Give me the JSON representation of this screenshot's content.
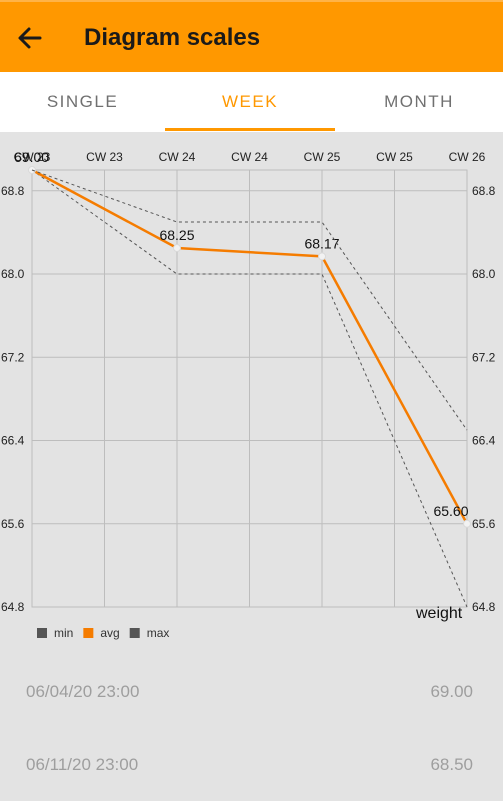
{
  "app": {
    "title": "Diagram scales"
  },
  "tabs": [
    {
      "label": "SINGLE",
      "active": false
    },
    {
      "label": "WEEK",
      "active": true
    },
    {
      "label": "MONTH",
      "active": false
    }
  ],
  "colors": {
    "accent": "#ff9800",
    "avg_line": "#f57c00",
    "minmax_line": "#555555",
    "grid": "#bdbdbd"
  },
  "chart_data": {
    "type": "line",
    "x_labels": [
      "CW 23",
      "CW 23",
      "CW 24",
      "CW 24",
      "CW 25",
      "CW 25",
      "CW 26"
    ],
    "y_ticks": [
      "64.8",
      "65.6",
      "66.4",
      "67.2",
      "68.0",
      "68.8"
    ],
    "ylim": [
      64.8,
      69.0
    ],
    "grid": true,
    "corner_label": "weight",
    "legend_position": "bottom-left",
    "series": [
      {
        "name": "min",
        "style": "dotted",
        "points": [
          [
            0,
            69.0
          ],
          [
            2,
            68.0
          ],
          [
            4,
            68.0
          ],
          [
            6,
            64.8
          ]
        ]
      },
      {
        "name": "avg",
        "style": "solid",
        "points": [
          [
            0,
            69.0
          ],
          [
            2,
            68.25
          ],
          [
            4,
            68.17
          ],
          [
            6,
            65.6
          ]
        ],
        "labels": [
          "69.00",
          "68.25",
          "68.17",
          "65.60"
        ]
      },
      {
        "name": "max",
        "style": "dotted",
        "points": [
          [
            0,
            69.0
          ],
          [
            2,
            68.5
          ],
          [
            4,
            68.5
          ],
          [
            6,
            66.5
          ]
        ]
      }
    ]
  },
  "entries": [
    {
      "date": "06/04/20 23:00",
      "value": "69.00"
    },
    {
      "date": "06/11/20 23:00",
      "value": "68.50"
    }
  ]
}
